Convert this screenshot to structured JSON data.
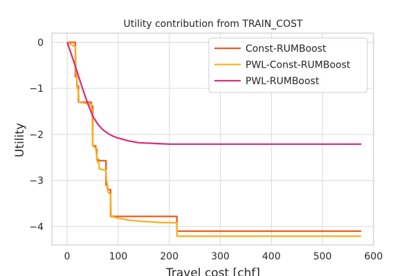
{
  "chart_data": {
    "type": "line",
    "title": "Utility contribution from TRAIN_COST",
    "xlabel": "Travel cost [chf]",
    "ylabel": "Utility",
    "xlim": [
      -30,
      600
    ],
    "ylim": [
      -4.4,
      0.2
    ],
    "xticks": [
      0,
      100,
      200,
      300,
      400,
      500,
      600
    ],
    "yticks": [
      0,
      -1,
      -2,
      -3,
      -4
    ],
    "grid": true,
    "legend_position": "top-right",
    "series": [
      {
        "name": "Const-RUMBoost",
        "color": "#f05a1a",
        "x": [
          0,
          16,
          16,
          19,
          19,
          22,
          22,
          47,
          47,
          50,
          50,
          56,
          56,
          58,
          58,
          62,
          62,
          76,
          76,
          79,
          79,
          85,
          85,
          215,
          215,
          576
        ],
        "y": [
          0,
          0,
          -0.75,
          -0.75,
          -0.95,
          -0.95,
          -1.3,
          -1.3,
          -1.38,
          -1.38,
          -2.25,
          -2.25,
          -2.32,
          -2.32,
          -2.55,
          -2.55,
          -2.57,
          -2.57,
          -3.1,
          -3.1,
          -3.2,
          -3.2,
          -3.78,
          -3.78,
          -4.1,
          -4.1
        ]
      },
      {
        "name": "PWL-Const-RUMBoost",
        "color": "#fbb021",
        "x": [
          0,
          16,
          17,
          19,
          20,
          22,
          23,
          30,
          47,
          49,
          50,
          56,
          57,
          58,
          59,
          62,
          63,
          76,
          77,
          79,
          80,
          85,
          86,
          100,
          120,
          150,
          180,
          215,
          215,
          576
        ],
        "y": [
          0,
          -0.1,
          -0.6,
          -0.8,
          -1.0,
          -1.05,
          -1.3,
          -1.31,
          -1.35,
          -1.55,
          -2.25,
          -2.3,
          -2.4,
          -2.45,
          -2.6,
          -2.62,
          -2.75,
          -2.78,
          -3.0,
          -3.1,
          -3.25,
          -3.3,
          -3.78,
          -3.82,
          -3.86,
          -3.89,
          -3.91,
          -3.92,
          -4.21,
          -4.21
        ]
      },
      {
        "name": "PWL-RUMBoost",
        "color": "#d7307b",
        "x": [
          0,
          10,
          20,
          30,
          40,
          50,
          60,
          70,
          80,
          90,
          100,
          120,
          140,
          160,
          180,
          200,
          250,
          300,
          400,
          500,
          576
        ],
        "y": [
          0,
          -0.32,
          -0.66,
          -1.0,
          -1.32,
          -1.6,
          -1.78,
          -1.9,
          -1.98,
          -2.04,
          -2.08,
          -2.14,
          -2.18,
          -2.19,
          -2.2,
          -2.21,
          -2.21,
          -2.21,
          -2.21,
          -2.21,
          -2.21
        ]
      }
    ]
  }
}
